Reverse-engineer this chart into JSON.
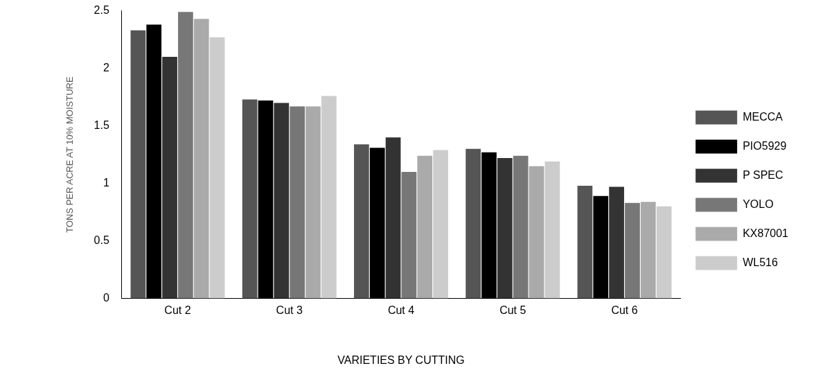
{
  "chart_data": {
    "type": "bar",
    "xlabel": "VARIETIES BY CUTTING",
    "ylabel": "TONS PER ACRE AT 10% MOISTURE",
    "categories": [
      "Cut 2",
      "Cut 3",
      "Cut 4",
      "Cut 5",
      "Cut 6"
    ],
    "series": [
      {
        "name": "MECCA",
        "color": "#555555",
        "values": [
          2.33,
          1.73,
          1.34,
          1.3,
          0.98
        ]
      },
      {
        "name": "PIO5929",
        "color": "#000000",
        "values": [
          2.38,
          1.72,
          1.31,
          1.27,
          0.89
        ]
      },
      {
        "name": "P SPEC",
        "color": "#333333",
        "values": [
          2.1,
          1.7,
          1.4,
          1.22,
          0.97
        ]
      },
      {
        "name": "YOLO",
        "color": "#777777",
        "values": [
          2.49,
          1.67,
          1.1,
          1.24,
          0.83
        ]
      },
      {
        "name": "KX87001",
        "color": "#aaaaaa",
        "values": [
          2.43,
          1.67,
          1.24,
          1.15,
          0.84
        ]
      },
      {
        "name": "WL516",
        "color": "#cccccc",
        "values": [
          2.27,
          1.76,
          1.29,
          1.19,
          0.8
        ]
      }
    ],
    "ylim": [
      0,
      2.5
    ],
    "yticks": [
      0,
      0.5,
      1,
      1.5,
      2,
      2.5
    ],
    "grid": false,
    "legend": "right"
  }
}
